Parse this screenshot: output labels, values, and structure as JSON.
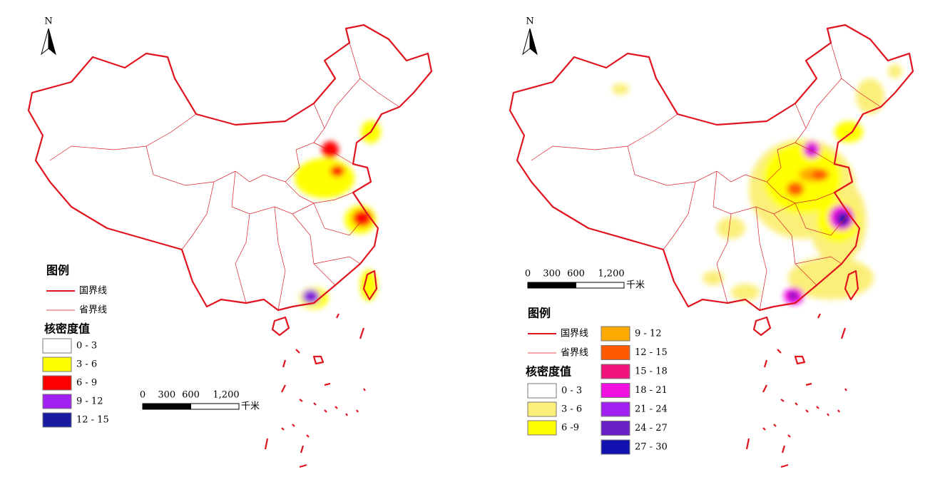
{
  "maps": [
    {
      "north": "N",
      "legend": {
        "title": "图例",
        "lines": [
          "国界线",
          "省界线"
        ],
        "density_title": "核密度值",
        "classes": [
          {
            "label": "0 - 3",
            "color": "#ffffff"
          },
          {
            "label": "3 - 6",
            "color": "#ffff00"
          },
          {
            "label": "6 - 9",
            "color": "#ff0000"
          },
          {
            "label": "9 - 12",
            "color": "#a020f0"
          },
          {
            "label": "12 - 15",
            "color": "#1a1aa0"
          }
        ]
      },
      "scale": {
        "ticks": [
          "0",
          "300",
          "600",
          "1,200"
        ],
        "unit": "千米"
      }
    },
    {
      "north": "N",
      "legend": {
        "title": "图例",
        "lines": [
          "国界线",
          "省界线"
        ],
        "density_title": "核密度值",
        "classes": [
          {
            "label": "0 - 3",
            "color": "#ffffff"
          },
          {
            "label": "3 - 6",
            "color": "#fbef7a"
          },
          {
            "label": "6 -9",
            "color": "#ffff00"
          },
          {
            "label": "9 - 12",
            "color": "#ffaa00"
          },
          {
            "label": "12 - 15",
            "color": "#ff5a00"
          },
          {
            "label": "15 - 18",
            "color": "#f0147a"
          },
          {
            "label": "18 - 21",
            "color": "#f010e0"
          },
          {
            "label": "21 - 24",
            "color": "#a020f0"
          },
          {
            "label": "24 - 27",
            "color": "#6a22c8"
          },
          {
            "label": "27 - 30",
            "color": "#1212b0"
          }
        ]
      },
      "scale": {
        "ticks": [
          "0",
          "300",
          "600",
          "1,200"
        ],
        "unit": "千米"
      }
    }
  ]
}
